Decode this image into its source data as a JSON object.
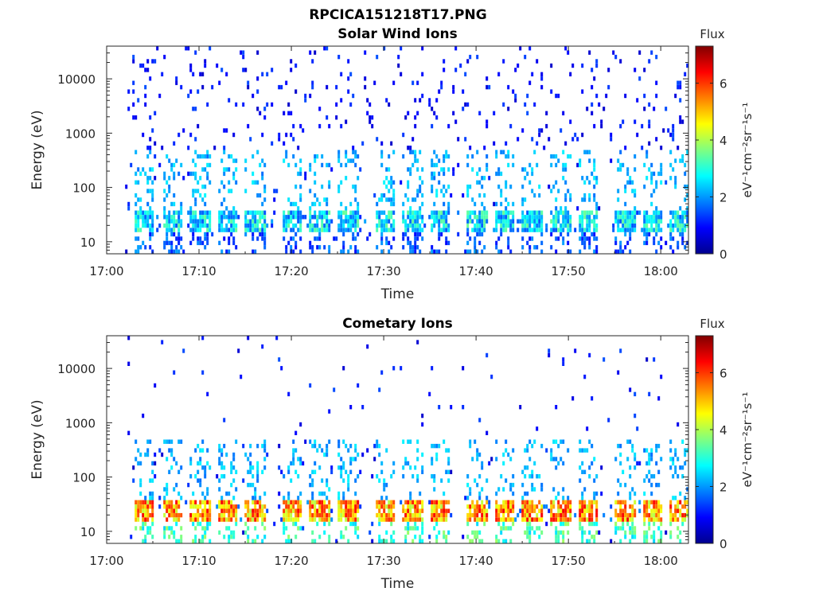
{
  "figure": {
    "title": "RPCICA151218T17.PNG"
  },
  "chart_data": [
    {
      "type": "heatmap",
      "title": "Solar Wind Ions",
      "xlabel": "Time",
      "ylabel": "Energy (eV)",
      "yscale": "log",
      "xlim": [
        "17:00",
        "18:03"
      ],
      "ylim": [
        6,
        40000
      ],
      "xticks": [
        "17:00",
        "17:10",
        "17:20",
        "17:30",
        "17:40",
        "17:50",
        "18:00"
      ],
      "yticks": [
        "10",
        "100",
        "1000",
        "10000"
      ],
      "colorbar": {
        "title": "Flux",
        "label": "eV⁻¹cm⁻²sr⁻¹s⁻¹",
        "range": [
          0,
          7.3
        ],
        "ticks": [
          "0",
          "2",
          "4",
          "6"
        ],
        "colormap": "jet"
      },
      "data_extent": [
        "17:02",
        "18:03"
      ],
      "summary": {
        "low_energy_band_eV": [
          15,
          40
        ],
        "low_energy_flux": [
          1.5,
          3.5
        ],
        "scatter_flux": [
          0.5,
          1.5
        ],
        "burst_times": [
          "17:04",
          "17:07",
          "17:10",
          "17:13",
          "17:16",
          "17:20",
          "17:23",
          "17:26",
          "17:30",
          "17:33",
          "17:36",
          "17:40",
          "17:43",
          "17:46",
          "17:49",
          "17:52",
          "17:56",
          "17:59",
          "18:02"
        ]
      }
    },
    {
      "type": "heatmap",
      "title": "Cometary Ions",
      "xlabel": "Time",
      "ylabel": "Energy (eV)",
      "yscale": "log",
      "xlim": [
        "17:00",
        "18:03"
      ],
      "ylim": [
        6,
        40000
      ],
      "xticks": [
        "17:00",
        "17:10",
        "17:20",
        "17:30",
        "17:40",
        "17:50",
        "18:00"
      ],
      "yticks": [
        "10",
        "100",
        "1000",
        "10000"
      ],
      "colorbar": {
        "title": "Flux",
        "label": "eV⁻¹cm⁻²sr⁻¹s⁻¹",
        "range": [
          0,
          7.3
        ],
        "ticks": [
          "0",
          "2",
          "4",
          "6"
        ],
        "colormap": "jet"
      },
      "data_extent": [
        "17:02",
        "18:03"
      ],
      "summary": {
        "low_energy_band_eV": [
          15,
          40
        ],
        "low_energy_flux": [
          4,
          6.5
        ],
        "scatter_flux": [
          0.5,
          1.5
        ],
        "burst_times": [
          "17:04",
          "17:07",
          "17:10",
          "17:13",
          "17:16",
          "17:20",
          "17:23",
          "17:26",
          "17:30",
          "17:33",
          "17:36",
          "17:40",
          "17:43",
          "17:46",
          "17:49",
          "17:52",
          "17:56",
          "17:59",
          "18:02"
        ]
      }
    }
  ]
}
